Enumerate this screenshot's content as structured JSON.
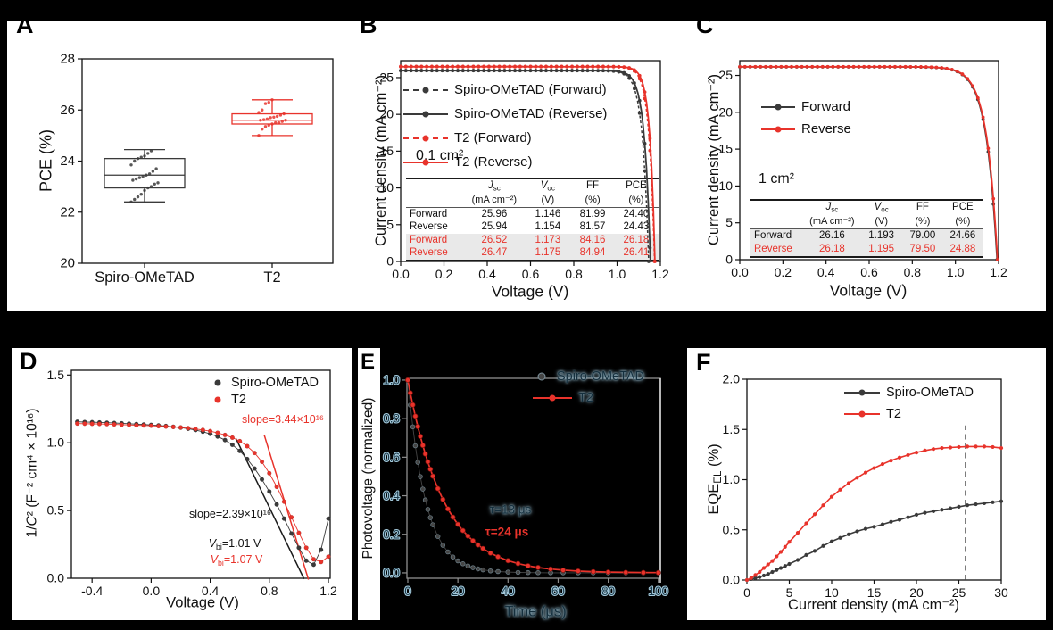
{
  "figure": {
    "background": "#000000",
    "panel_background": "#ffffff",
    "colors": {
      "red": "#e8332b",
      "black": "#3a3a3a",
      "table_shade": "#e9e9e9"
    }
  },
  "panels": {
    "A": {
      "letter": "A"
    },
    "B": {
      "letter": "B",
      "area_label": "0.1 cm²",
      "table": {
        "headers": [
          {
            "name": "J",
            "sub": "sc",
            "italic": true,
            "unit": "(mA cm⁻²)"
          },
          {
            "name": "V",
            "sub": "oc",
            "italic": true,
            "unit": "(V)"
          },
          {
            "name": "FF",
            "sub": "",
            "italic": false,
            "unit": "(%)"
          },
          {
            "name": "PCE",
            "sub": "",
            "italic": false,
            "unit": "(%)"
          }
        ],
        "rows": [
          {
            "label": "Forward",
            "values": [
              "25.96",
              "1.146",
              "81.99",
              "24.40"
            ],
            "red": false,
            "shaded": false
          },
          {
            "label": "Reverse",
            "values": [
              "25.94",
              "1.154",
              "81.57",
              "24.43"
            ],
            "red": false,
            "shaded": false
          },
          {
            "label": "Forward",
            "values": [
              "26.52",
              "1.173",
              "84.16",
              "26.18"
            ],
            "red": true,
            "shaded": true
          },
          {
            "label": "Reverse",
            "values": [
              "26.47",
              "1.175",
              "84.94",
              "26.41"
            ],
            "red": true,
            "shaded": true
          }
        ]
      }
    },
    "C": {
      "letter": "C",
      "area_label": "1 cm²",
      "table": {
        "headers": [
          {
            "name": "J",
            "sub": "sc",
            "italic": true,
            "unit": "(mA cm⁻²)"
          },
          {
            "name": "V",
            "sub": "oc",
            "italic": true,
            "unit": "(V)"
          },
          {
            "name": "FF",
            "sub": "",
            "italic": false,
            "unit": "(%)"
          },
          {
            "name": "PCE",
            "sub": "",
            "italic": false,
            "unit": "(%)"
          }
        ],
        "rows": [
          {
            "label": "Forward",
            "values": [
              "26.16",
              "1.193",
              "79.00",
              "24.66"
            ],
            "red": false,
            "shaded": true
          },
          {
            "label": "Reverse",
            "values": [
              "26.18",
              "1.195",
              "79.50",
              "24.88"
            ],
            "red": true,
            "shaded": true
          }
        ]
      }
    },
    "D": {
      "letter": "D",
      "annotations": {
        "slope_red": {
          "text": "slope=3.44×10¹⁶",
          "color": "#e8332b"
        },
        "slope_black": {
          "text": "slope=2.39×10¹⁶",
          "color": "#1a1a1a"
        },
        "vbi_black": {
          "segments": [
            {
              "t": "V",
              "i": true
            },
            {
              "t": "bi",
              "sub": true
            },
            {
              "t": "=1.01 V"
            }
          ],
          "color": "#1a1a1a"
        },
        "vbi_red": {
          "segments": [
            {
              "t": "V",
              "i": true
            },
            {
              "t": "bi",
              "sub": true
            },
            {
              "t": "=1.07 V"
            }
          ],
          "color": "#e8332b"
        }
      }
    },
    "E": {
      "letter": "E",
      "annotations": {
        "tau_black": {
          "text": "τ=13 μs"
        },
        "tau_red": {
          "text": "τ=24 μs"
        }
      }
    },
    "F": {
      "letter": "F"
    }
  },
  "chart_data": {
    "A": {
      "type": "box",
      "ylabel": "PCE (%)",
      "ylim": [
        20,
        28
      ],
      "yticks": [
        {
          "v": 20,
          "t": "20"
        },
        {
          "v": 22,
          "t": "22"
        },
        {
          "v": 24,
          "t": "24"
        },
        {
          "v": 26,
          "t": "26"
        },
        {
          "v": 28,
          "t": "28"
        }
      ],
      "categories": [
        "Spiro-OMeTAD",
        "T2"
      ],
      "series": [
        {
          "name": "Spiro-OMeTAD",
          "color": "#3a3a3a",
          "whisker_low": 22.4,
          "q1": 22.95,
          "median": 23.45,
          "q3": 24.1,
          "whisker_high": 24.45,
          "points": [
            22.4,
            22.5,
            22.6,
            22.7,
            22.85,
            22.95,
            23.0,
            23.1,
            23.15,
            23.25,
            23.3,
            23.35,
            23.4,
            23.45,
            23.5,
            23.6,
            23.7,
            23.85,
            24.0,
            24.1,
            24.15,
            24.2,
            24.3,
            24.4
          ]
        },
        {
          "name": "T2",
          "color": "#e8332b",
          "whisker_low": 25.0,
          "q1": 25.45,
          "median": 25.6,
          "q3": 25.85,
          "whisker_high": 26.4,
          "points": [
            25.0,
            25.25,
            25.35,
            25.4,
            25.45,
            25.5,
            25.5,
            25.55,
            25.6,
            25.6,
            25.62,
            25.65,
            25.7,
            25.72,
            25.75,
            25.8,
            25.85,
            25.9,
            26.0,
            26.25,
            26.3,
            26.4
          ]
        }
      ]
    },
    "B": {
      "type": "line",
      "xlabel": "Voltage (V)",
      "ylabel": "Current density (mA cm⁻²)",
      "xlim": [
        0,
        1.2
      ],
      "ylim": [
        0,
        27.3
      ],
      "xticks": [
        {
          "v": 0,
          "t": "0.0"
        },
        {
          "v": 0.2,
          "t": "0.2"
        },
        {
          "v": 0.4,
          "t": "0.4"
        },
        {
          "v": 0.6,
          "t": "0.6"
        },
        {
          "v": 0.8,
          "t": "0.8"
        },
        {
          "v": 1.0,
          "t": "1.0"
        },
        {
          "v": 1.2,
          "t": "1.2"
        }
      ],
      "yticks": [
        {
          "v": 0,
          "t": "0"
        },
        {
          "v": 5,
          "t": "5"
        },
        {
          "v": 10,
          "t": "10"
        },
        {
          "v": 15,
          "t": "15"
        },
        {
          "v": 20,
          "t": "20"
        },
        {
          "v": 25,
          "t": "25"
        }
      ],
      "series": [
        {
          "name": "Spiro-OMeTAD (Forward)",
          "color": "#3a3a3a",
          "dash": true,
          "jsc": 25.96,
          "voc": 1.146,
          "knee": 0.028
        },
        {
          "name": "Spiro-OMeTAD (Reverse)",
          "color": "#3a3a3a",
          "dash": false,
          "jsc": 25.94,
          "voc": 1.154,
          "knee": 0.027
        },
        {
          "name": "T2 (Forward)",
          "color": "#e8332b",
          "dash": true,
          "jsc": 26.52,
          "voc": 1.173,
          "knee": 0.025
        },
        {
          "name": "T2 (Reverse)",
          "color": "#e8332b",
          "dash": false,
          "jsc": 26.47,
          "voc": 1.175,
          "knee": 0.023
        }
      ]
    },
    "C": {
      "type": "line",
      "xlabel": "Voltage (V)",
      "ylabel": "Current density (mA cm⁻²)",
      "xlim": [
        0,
        1.2
      ],
      "ylim": [
        0,
        27.0
      ],
      "xticks": [
        {
          "v": 0,
          "t": "0.0"
        },
        {
          "v": 0.2,
          "t": "0.2"
        },
        {
          "v": 0.4,
          "t": "0.4"
        },
        {
          "v": 0.6,
          "t": "0.6"
        },
        {
          "v": 0.8,
          "t": "0.8"
        },
        {
          "v": 1.0,
          "t": "1.0"
        },
        {
          "v": 1.2,
          "t": "1.2"
        }
      ],
      "yticks": [
        {
          "v": 0,
          "t": "0"
        },
        {
          "v": 5,
          "t": "5"
        },
        {
          "v": 10,
          "t": "10"
        },
        {
          "v": 15,
          "t": "15"
        },
        {
          "v": 20,
          "t": "20"
        },
        {
          "v": 25,
          "t": "25"
        }
      ],
      "series": [
        {
          "name": "Forward",
          "color": "#3a3a3a",
          "dash": false,
          "jsc": 26.16,
          "voc": 1.193,
          "knee": 0.05
        },
        {
          "name": "Reverse",
          "color": "#e8332b",
          "dash": false,
          "jsc": 26.18,
          "voc": 1.195,
          "knee": 0.05
        }
      ]
    },
    "D": {
      "type": "scatter",
      "xlabel": "Voltage (V)",
      "ylabel_segments": [
        {
          "t": "1/"
        },
        {
          "t": "C",
          "i": true
        },
        {
          "t": "² (F⁻² cm⁴ × 10¹⁶)"
        }
      ],
      "xlim": [
        -0.54,
        1.212
      ],
      "ylim": [
        0,
        1.535
      ],
      "xticks": [
        {
          "v": -0.4,
          "t": "-0.4"
        },
        {
          "v": 0,
          "t": "0.0"
        },
        {
          "v": 0.4,
          "t": "0.4"
        },
        {
          "v": 0.8,
          "t": "0.8"
        },
        {
          "v": 1.2,
          "t": "1.2"
        }
      ],
      "yticks": [
        {
          "v": 0,
          "t": "0.0"
        },
        {
          "v": 0.5,
          "t": "0.5"
        },
        {
          "v": 1.0,
          "t": "1.0"
        },
        {
          "v": 1.5,
          "t": "1.5"
        }
      ],
      "x": [
        -0.5,
        -0.45,
        -0.4,
        -0.35,
        -0.3,
        -0.25,
        -0.2,
        -0.15,
        -0.1,
        -0.05,
        0,
        0.05,
        0.1,
        0.15,
        0.2,
        0.25,
        0.3,
        0.35,
        0.4,
        0.45,
        0.5,
        0.55,
        0.6,
        0.65,
        0.7,
        0.75,
        0.8,
        0.85,
        0.9,
        0.95,
        1.0,
        1.05,
        1.1,
        1.15,
        1.2
      ],
      "series": [
        {
          "name": "Spiro-OMeTAD",
          "color": "#3a3a3a",
          "y": [
            1.155,
            1.153,
            1.152,
            1.15,
            1.148,
            1.146,
            1.144,
            1.141,
            1.138,
            1.135,
            1.132,
            1.128,
            1.124,
            1.118,
            1.112,
            1.104,
            1.094,
            1.082,
            1.066,
            1.046,
            1.02,
            0.985,
            0.94,
            0.88,
            0.81,
            0.73,
            0.64,
            0.545,
            0.44,
            0.33,
            0.225,
            0.13,
            0.1,
            0.21,
            0.44
          ]
        },
        {
          "name": "T2",
          "color": "#e8332b",
          "y": [
            1.142,
            1.141,
            1.14,
            1.139,
            1.138,
            1.136,
            1.134,
            1.132,
            1.13,
            1.128,
            1.126,
            1.123,
            1.12,
            1.117,
            1.113,
            1.108,
            1.102,
            1.095,
            1.086,
            1.074,
            1.058,
            1.038,
            1.012,
            0.975,
            0.925,
            0.86,
            0.775,
            0.675,
            0.565,
            0.45,
            0.335,
            0.225,
            0.14,
            0.12,
            0.16
          ]
        }
      ],
      "fit_lines": [
        {
          "color": "#1a1a1a",
          "from": [
            0.575,
            1.03
          ],
          "to": [
            1.035,
            -0.005
          ]
        },
        {
          "color": "#e8332b",
          "from": [
            0.765,
            1.06
          ],
          "to": [
            1.065,
            -0.01
          ]
        }
      ]
    },
    "E": {
      "type": "line",
      "xlabel": "Time (μs)",
      "ylabel": "Photovoltage (normalized)",
      "xlim": [
        0,
        100
      ],
      "ylim": [
        0,
        1.0
      ],
      "xticks": [
        {
          "v": 0,
          "t": "0"
        },
        {
          "v": 20,
          "t": "20"
        },
        {
          "v": 40,
          "t": "40"
        },
        {
          "v": 60,
          "t": "60"
        },
        {
          "v": 80,
          "t": "80"
        },
        {
          "v": 100,
          "t": "100"
        }
      ],
      "yticks": [
        {
          "v": 0,
          "t": "0.0"
        },
        {
          "v": 0.2,
          "t": "0.2"
        },
        {
          "v": 0.4,
          "t": "0.4"
        },
        {
          "v": 0.6,
          "t": "0.6"
        },
        {
          "v": 0.8,
          "t": "0.8"
        },
        {
          "v": 1.0,
          "t": "1.0"
        }
      ],
      "t_points": [
        0,
        1,
        2,
        3,
        4,
        5,
        6,
        7,
        8,
        9,
        10,
        12,
        14,
        16,
        18,
        20,
        22,
        24,
        26,
        28,
        30,
        33,
        36,
        40,
        44,
        48,
        52,
        57,
        62,
        68,
        74,
        80,
        87,
        94,
        100
      ],
      "series": [
        {
          "name": "Spiro-OMeTAD",
          "color": "#454545",
          "tau": 7.2,
          "tau_label": "13"
        },
        {
          "name": "T2",
          "color": "#e8332b",
          "tau": 14.5,
          "tau_label": "24"
        }
      ]
    },
    "F": {
      "type": "line",
      "xlabel": "Current density (mA cm⁻²)",
      "ylabel_segments": [
        {
          "t": "EQE"
        },
        {
          "t": "EL",
          "sub": true
        },
        {
          "t": " (%)"
        }
      ],
      "xlim": [
        0,
        30
      ],
      "ylim": [
        0,
        2.0
      ],
      "xticks": [
        {
          "v": 0,
          "t": "0"
        },
        {
          "v": 5,
          "t": "5"
        },
        {
          "v": 10,
          "t": "10"
        },
        {
          "v": 15,
          "t": "15"
        },
        {
          "v": 20,
          "t": "20"
        },
        {
          "v": 25,
          "t": "25"
        },
        {
          "v": 30,
          "t": "30"
        }
      ],
      "yticks": [
        {
          "v": 0,
          "t": "0.0"
        },
        {
          "v": 0.5,
          "t": "0.5"
        },
        {
          "v": 1.0,
          "t": "1.0"
        },
        {
          "v": 1.5,
          "t": "1.5"
        },
        {
          "v": 2.0,
          "t": "2.0"
        }
      ],
      "x": [
        0,
        0.5,
        1,
        1.5,
        2,
        2.5,
        3,
        3.5,
        4,
        4.5,
        5,
        6,
        7,
        8,
        9,
        10,
        11,
        12,
        13,
        14,
        15,
        16,
        17,
        18,
        19,
        20,
        21,
        22,
        23,
        24,
        25,
        26,
        27,
        28,
        29,
        30
      ],
      "series": [
        {
          "name": "Spiro-OMeTAD",
          "color": "#3a3a3a",
          "y": [
            0,
            0.01,
            0.02,
            0.03,
            0.045,
            0.06,
            0.08,
            0.1,
            0.12,
            0.14,
            0.16,
            0.2,
            0.25,
            0.29,
            0.34,
            0.385,
            0.42,
            0.455,
            0.485,
            0.51,
            0.53,
            0.555,
            0.58,
            0.6,
            0.625,
            0.65,
            0.67,
            0.685,
            0.7,
            0.715,
            0.73,
            0.745,
            0.755,
            0.765,
            0.775,
            0.785
          ]
        },
        {
          "name": "T2",
          "color": "#e8332b",
          "y": [
            0,
            0.02,
            0.05,
            0.08,
            0.12,
            0.155,
            0.19,
            0.235,
            0.28,
            0.33,
            0.38,
            0.47,
            0.565,
            0.655,
            0.745,
            0.83,
            0.9,
            0.965,
            1.02,
            1.07,
            1.115,
            1.155,
            1.19,
            1.22,
            1.245,
            1.27,
            1.29,
            1.305,
            1.315,
            1.32,
            1.325,
            1.33,
            1.33,
            1.33,
            1.325,
            1.315
          ]
        }
      ],
      "dashed_line_x": 25.8,
      "dashed_line_top": 1.54
    }
  }
}
